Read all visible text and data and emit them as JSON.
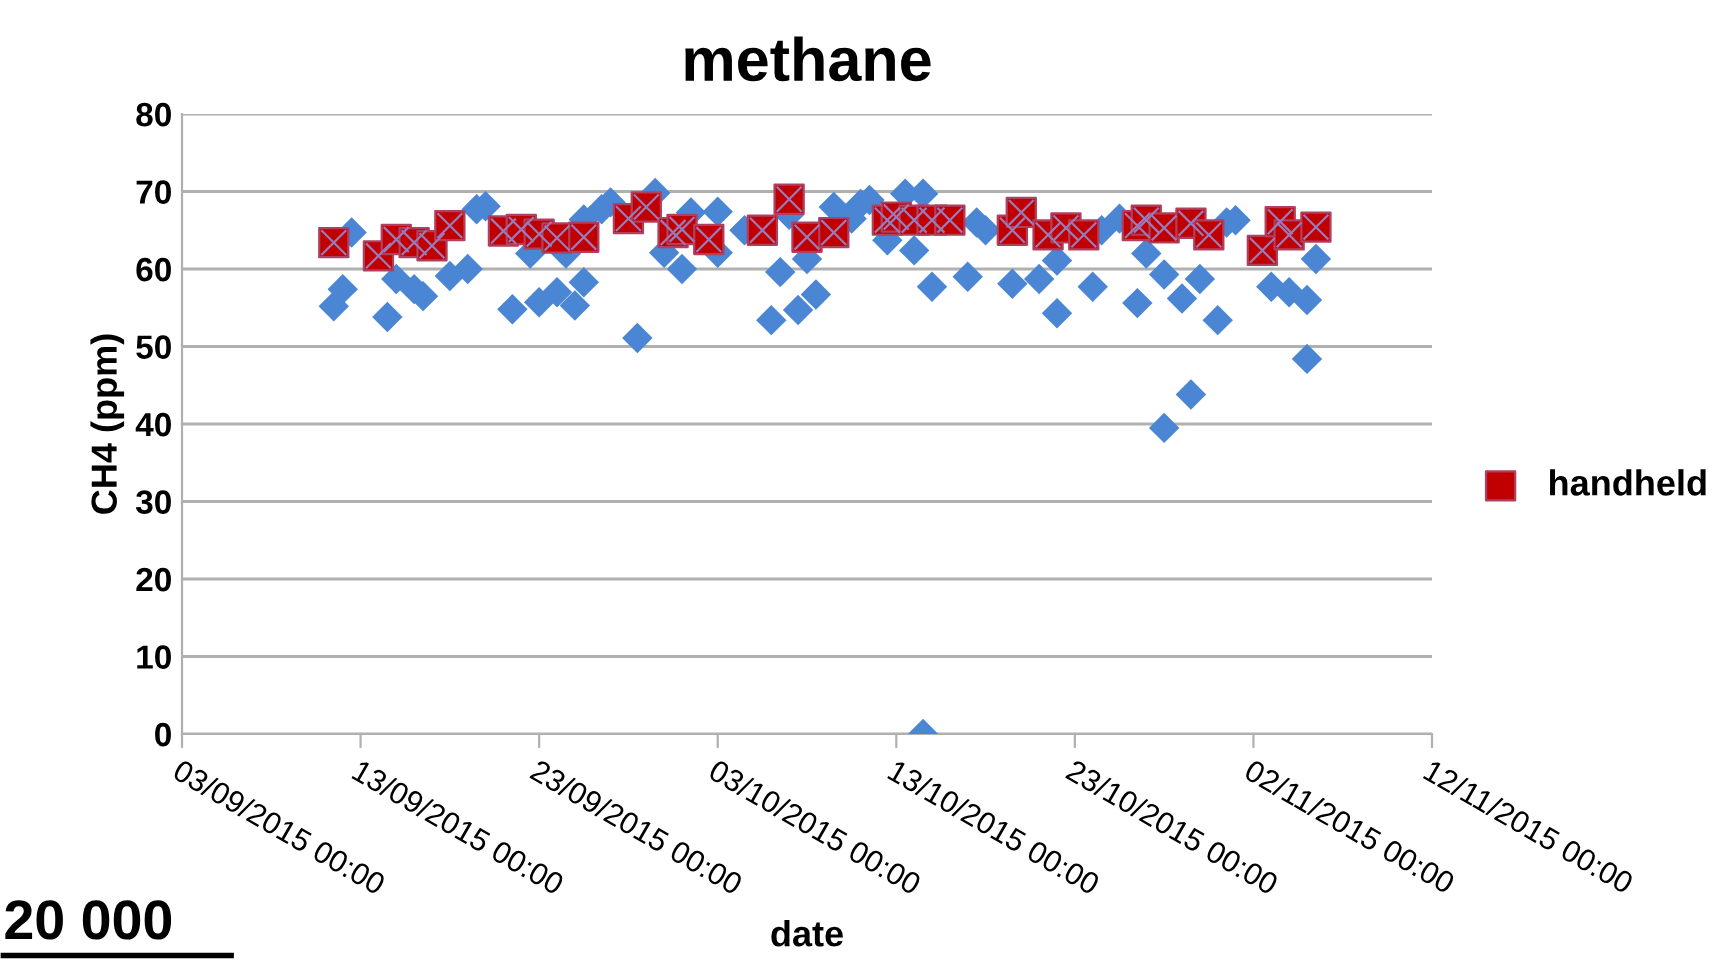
{
  "chart_data": {
    "type": "scatter",
    "title": "methane",
    "xlabel": "date",
    "ylabel": "CH4 (ppm)",
    "annotations": [
      "20 000"
    ],
    "xlim": [
      "2015-09-03",
      "2015-11-12"
    ],
    "xticks": [
      {
        "value": "2015-09-03",
        "label": "03/09/2015 00:00"
      },
      {
        "value": "2015-09-13",
        "label": "13/09/2015 00:00"
      },
      {
        "value": "2015-09-23",
        "label": "23/09/2015 00:00"
      },
      {
        "value": "2015-10-03",
        "label": "03/10/2015 00:00"
      },
      {
        "value": "2015-10-13",
        "label": "13/10/2015 00:00"
      },
      {
        "value": "2015-10-23",
        "label": "23/10/2015 00:00"
      },
      {
        "value": "2015-11-02",
        "label": "02/11/2015 00:00"
      },
      {
        "value": "2015-11-12",
        "label": "12/11/2015 00:00"
      }
    ],
    "ylim": [
      0,
      80
    ],
    "yticks": [
      0,
      10,
      20,
      30,
      40,
      50,
      60,
      70,
      80
    ],
    "grid": "y",
    "legend": "right",
    "series": [
      {
        "color": "#4a86d4",
        "marker": "diamond",
        "x": [
          "2015-09-11T12:00",
          "2015-09-12",
          "2015-09-12T12:00",
          "2015-09-14T12:00",
          "2015-09-15",
          "2015-09-16",
          "2015-09-16T12:00",
          "2015-09-18",
          "2015-09-19",
          "2015-09-19T12:00",
          "2015-09-20",
          "2015-09-21T12:00",
          "2015-09-22T12:00",
          "2015-09-23",
          "2015-09-24",
          "2015-09-24T12:00",
          "2015-09-25",
          "2015-09-25T12:00",
          "2015-09-25T12:00",
          "2015-09-26T12:00",
          "2015-09-27",
          "2015-09-28T12:00",
          "2015-09-29T12:00",
          "2015-09-30",
          "2015-10-01",
          "2015-10-01T12:00",
          "2015-10-03",
          "2015-10-03",
          "2015-10-04T12:00",
          "2015-10-06",
          "2015-10-06T12:00",
          "2015-10-07",
          "2015-10-07T12:00",
          "2015-10-08",
          "2015-10-08T12:00",
          "2015-10-09T12:00",
          "2015-10-10T12:00",
          "2015-10-11",
          "2015-10-11T12:00",
          "2015-10-12T12:00",
          "2015-10-13T12:00",
          "2015-10-14",
          "2015-10-14T12:00",
          "2015-10-14T12:00",
          "2015-10-15",
          "2015-10-17",
          "2015-10-17T12:00",
          "2015-10-18",
          "2015-10-19T12:00",
          "2015-10-21",
          "2015-10-22",
          "2015-10-22",
          "2015-10-24",
          "2015-10-24T12:00",
          "2015-10-25T12:00",
          "2015-10-26T12:00",
          "2015-10-27",
          "2015-10-28",
          "2015-10-28",
          "2015-10-29",
          "2015-10-29T12:00",
          "2015-10-30",
          "2015-10-31",
          "2015-10-31T12:00",
          "2015-11-01",
          "2015-11-03",
          "2015-11-04",
          "2015-11-05",
          "2015-11-05",
          "2015-11-05T12:00"
        ],
        "values": [
          55.2,
          57.4,
          64.7,
          53.8,
          58.7,
          57.4,
          56.5,
          59.1,
          60.0,
          67.7,
          68.1,
          54.8,
          62.0,
          55.7,
          57.0,
          62.0,
          55.3,
          66.4,
          58.3,
          67.7,
          68.6,
          51.1,
          69.8,
          62.1,
          60.0,
          67.3,
          62.1,
          67.4,
          65.0,
          53.4,
          59.6,
          67.0,
          54.7,
          61.3,
          56.7,
          68.0,
          66.5,
          68.4,
          68.9,
          63.7,
          69.7,
          62.4,
          69.7,
          0,
          57.7,
          59.0,
          66.0,
          65.0,
          58.1,
          58.7,
          54.3,
          61.1,
          57.7,
          65.0,
          66.5,
          55.6,
          62.0,
          39.5,
          59.3,
          56.2,
          43.8,
          58.7,
          53.4,
          66.0,
          66.3,
          57.7,
          57.0,
          48.4,
          56.0,
          61.3
        ]
      },
      {
        "name": "handheld",
        "color": "#c00000",
        "marker": "square",
        "x": [
          "2015-09-11T12:00",
          "2015-09-14",
          "2015-09-15",
          "2015-09-16",
          "2015-09-17",
          "2015-09-18",
          "2015-09-21",
          "2015-09-22",
          "2015-09-23",
          "2015-09-24",
          "2015-09-25T12:00",
          "2015-09-28",
          "2015-09-29",
          "2015-09-30T12:00",
          "2015-10-01",
          "2015-10-02T12:00",
          "2015-10-05T12:00",
          "2015-10-07",
          "2015-10-08",
          "2015-10-09T12:00",
          "2015-10-12T12:00",
          "2015-10-13",
          "2015-10-14",
          "2015-10-15",
          "2015-10-16",
          "2015-10-19T12:00",
          "2015-10-20",
          "2015-10-21T12:00",
          "2015-10-22T12:00",
          "2015-10-23T12:00",
          "2015-10-26T12:00",
          "2015-10-27",
          "2015-10-28",
          "2015-10-29T12:00",
          "2015-10-30T12:00",
          "2015-11-02T12:00",
          "2015-11-03T12:00",
          "2015-11-04",
          "2015-11-05T12:00"
        ],
        "values": [
          63.4,
          61.7,
          63.8,
          63.4,
          63.0,
          65.6,
          64.9,
          65.1,
          64.5,
          64.0,
          64.1,
          66.5,
          68.0,
          64.7,
          65.1,
          63.8,
          65.0,
          69.0,
          64.1,
          64.7,
          66.3,
          66.7,
          66.3,
          66.3,
          66.3,
          65.0,
          67.3,
          64.4,
          65.3,
          64.4,
          65.6,
          66.3,
          65.3,
          65.9,
          64.4,
          62.4,
          66.1,
          64.4,
          65.4
        ]
      }
    ]
  }
}
